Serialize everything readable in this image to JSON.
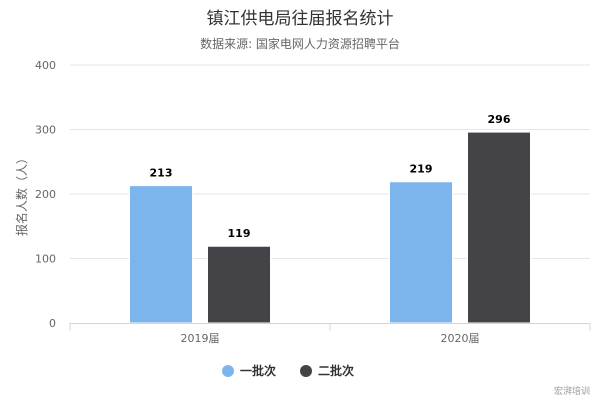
{
  "chart_data": {
    "type": "bar",
    "title": "镇江供电局往届报名统计",
    "subtitle": "数据来源: 国家电网人力资源招聘平台",
    "xlabel": "",
    "ylabel": "报名人数（人）",
    "categories": [
      "2019届",
      "2020届"
    ],
    "series": [
      {
        "name": "一批次",
        "values": [
          213,
          219
        ],
        "color": "#7cb5ec"
      },
      {
        "name": "二批次",
        "values": [
          119,
          296
        ],
        "color": "#434348"
      }
    ],
    "ylim": [
      0,
      400
    ],
    "yticks": [
      0,
      100,
      200,
      300,
      400
    ],
    "grid": true,
    "legend": "bottom-center",
    "credit": "宏湃培训"
  }
}
